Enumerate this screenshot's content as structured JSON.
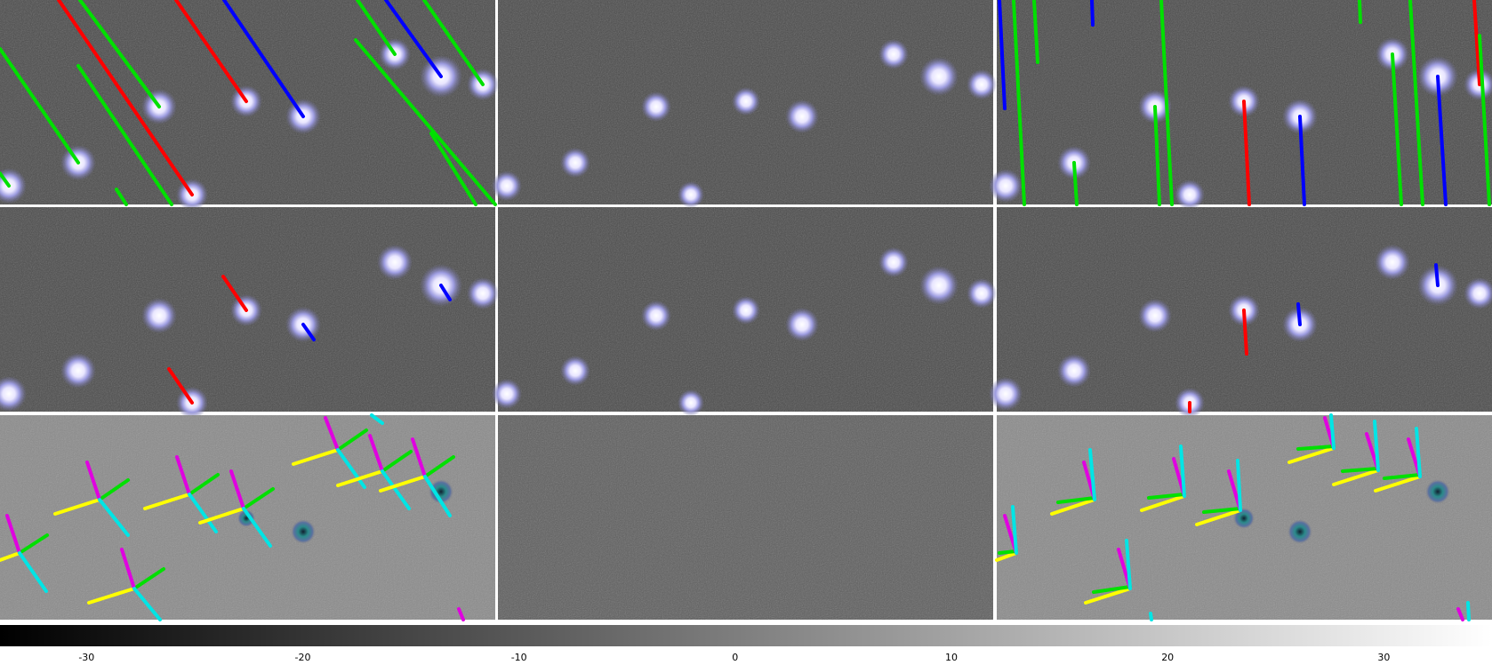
{
  "colors": {
    "background": "#ffffff",
    "panel_background": "#4a4a4a",
    "star_halo": "#9d9ce0",
    "star_core": "#f2f0ff",
    "red_vector": "#ff0000",
    "blue_vector": "#0000ff",
    "green_vector": "#00e000",
    "yellow_axis": "#ffff00",
    "cyan_axis": "#00e5e5",
    "magenta_axis": "#e000e0"
  },
  "panels": [
    {
      "kind": "stars_vectors",
      "icon": "star-field-panel"
    },
    {
      "kind": "stars",
      "icon": "star-field-panel"
    },
    {
      "kind": "stars_vectors",
      "icon": "star-field-panel"
    },
    {
      "kind": "stars_vectors",
      "icon": "star-field-panel"
    },
    {
      "kind": "stars",
      "icon": "star-field-panel"
    },
    {
      "kind": "stars_vectors",
      "icon": "star-field-panel"
    },
    {
      "kind": "residual_axes",
      "icon": "residual-panel"
    },
    {
      "kind": "residual",
      "icon": "residual-panel"
    },
    {
      "kind": "residual_axes",
      "icon": "residual-panel"
    }
  ],
  "colorbar": {
    "min": -34,
    "max": 35,
    "ticks": [
      "-30",
      "-20",
      "-10",
      "0",
      "10",
      "20",
      "30"
    ],
    "tick_values": [
      -30,
      -20,
      -10,
      0,
      10,
      20,
      30
    ]
  }
}
